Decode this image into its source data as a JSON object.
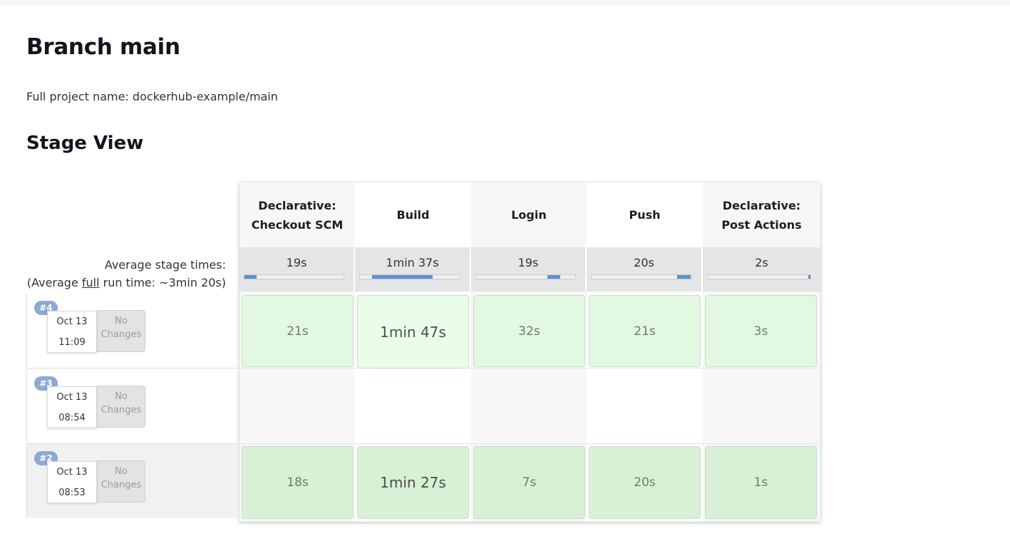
{
  "page": {
    "title": "Branch main",
    "full_project_name": "Full project name: dockerhub-example/main",
    "section_title": "Stage View"
  },
  "stage_view": {
    "average_label": "Average stage times:",
    "full_run_prefix": "(Average ",
    "full_run_link": "full",
    "full_run_suffix": " run time: ~3min 20s)",
    "stages": [
      {
        "name_line1": "Declarative:",
        "name_line2": "Checkout SCM",
        "avg": "19s"
      },
      {
        "name_line1": "Build",
        "name_line2": "",
        "avg": "1min 37s"
      },
      {
        "name_line1": "Login",
        "name_line2": "",
        "avg": "19s"
      },
      {
        "name_line1": "Push",
        "name_line2": "",
        "avg": "20s"
      },
      {
        "name_line1": "Declarative:",
        "name_line2": "Post Actions",
        "avg": "2s"
      }
    ],
    "builds": [
      {
        "number": "#4",
        "date": "Oct 13",
        "time": "11:09",
        "changes": [
          "No",
          "Changes"
        ],
        "durations": [
          "21s",
          "1min 47s",
          "32s",
          "21s",
          "3s"
        ]
      },
      {
        "number": "#3",
        "date": "Oct 13",
        "time": "08:54",
        "changes": [
          "No",
          "Changes"
        ],
        "durations": []
      },
      {
        "number": "#2",
        "date": "Oct 13",
        "time": "08:53",
        "changes": [
          "No",
          "Changes"
        ],
        "durations": [
          "18s",
          "1min 27s",
          "7s",
          "20s",
          "1s"
        ]
      }
    ]
  }
}
